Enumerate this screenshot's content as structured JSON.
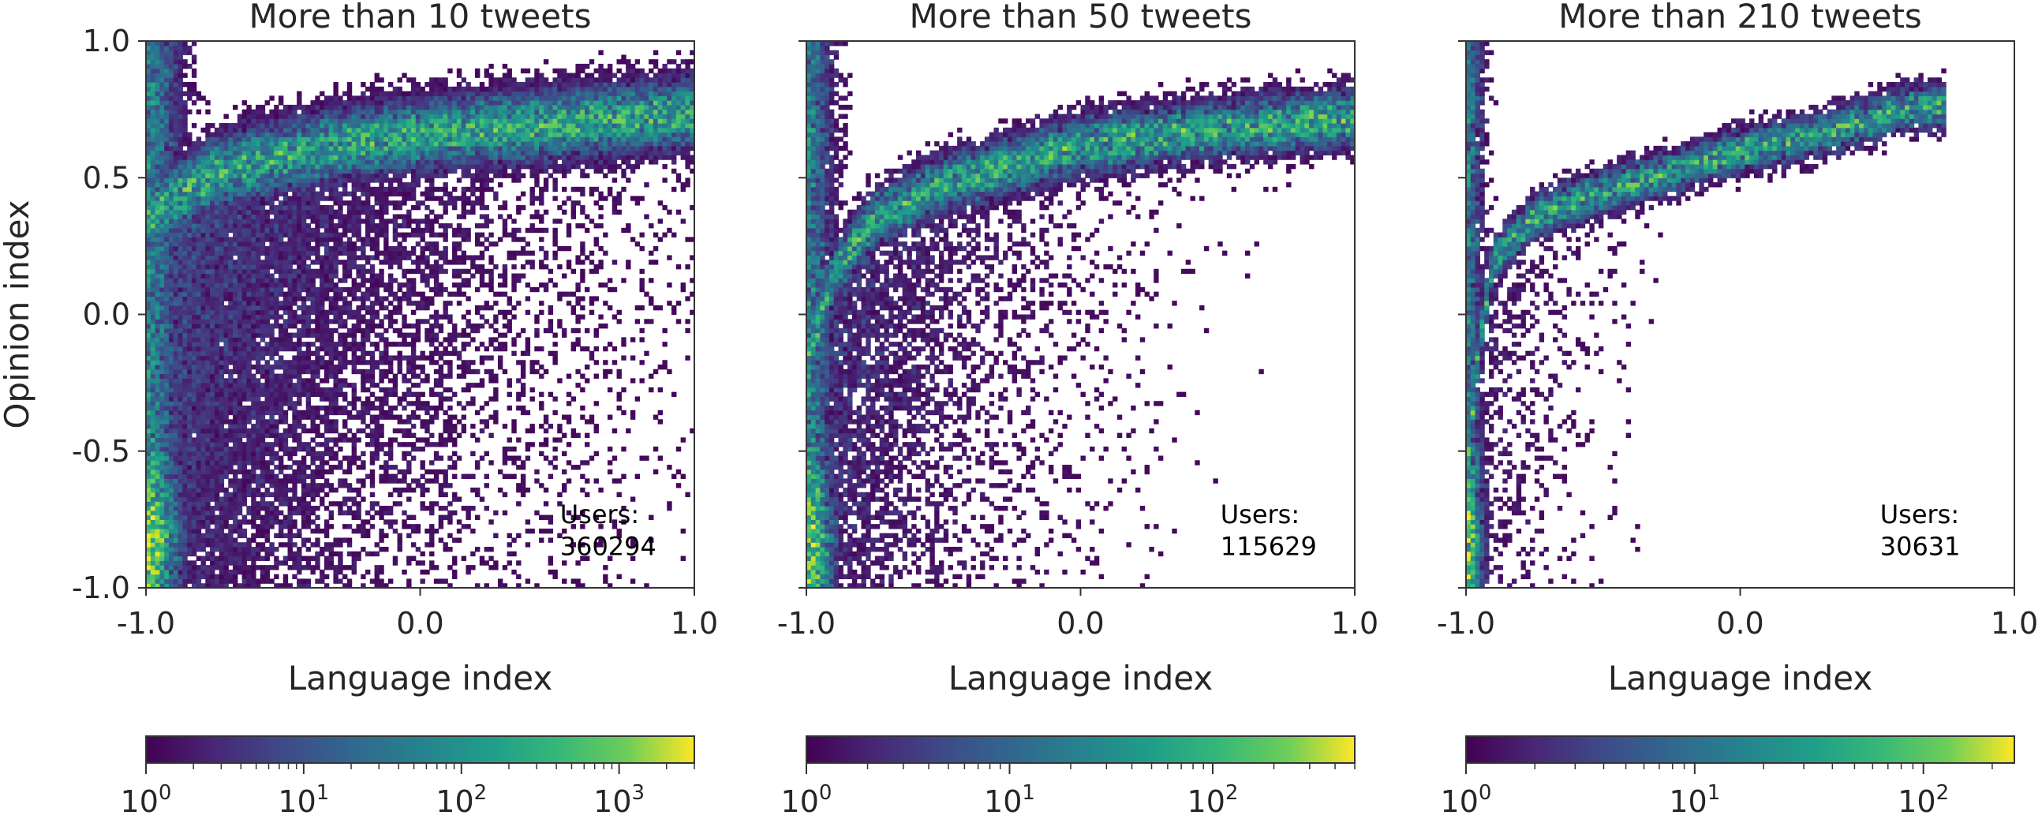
{
  "chart_data": [
    {
      "type": "heatmap",
      "title": "More than 10 tweets",
      "xlabel": "Language index",
      "ylabel": "Opinion index",
      "xlim": [
        -1.0,
        1.0
      ],
      "ylim": [
        -1.0,
        1.0
      ],
      "xticks": [
        "-1.0",
        "0.0",
        "1.0"
      ],
      "yticks": [
        "1.0",
        "0.5",
        "0.0",
        "-0.5",
        "-1.0"
      ],
      "annotation": [
        "Users:",
        "360294"
      ],
      "users": 360294,
      "colormap": "viridis",
      "color_scale": "log",
      "colorbar": {
        "min_exp": 0,
        "max_value": 3000,
        "tick_exps": [
          "0",
          "1",
          "2",
          "3"
        ]
      },
      "ridge": [
        [
          -1.0,
          0.35
        ],
        [
          -0.75,
          0.52
        ],
        [
          -0.5,
          0.58
        ],
        [
          -0.25,
          0.63
        ],
        [
          0.0,
          0.66
        ],
        [
          0.5,
          0.7
        ],
        [
          1.0,
          0.74
        ]
      ],
      "peak": [
        -1.0,
        -0.82
      ]
    },
    {
      "type": "heatmap",
      "title": "More than 50 tweets",
      "xlabel": "Language index",
      "ylabel": "",
      "xlim": [
        -1.0,
        1.0
      ],
      "ylim": [
        -1.0,
        1.0
      ],
      "xticks": [
        "-1.0",
        "0.0",
        "1.0"
      ],
      "yticks": [],
      "annotation": [
        "Users:",
        "115629"
      ],
      "users": 115629,
      "colormap": "viridis",
      "color_scale": "log",
      "colorbar": {
        "min_exp": 0,
        "max_value": 500,
        "tick_exps": [
          "0",
          "1",
          "2"
        ]
      },
      "ridge": [
        [
          -1.0,
          -0.2
        ],
        [
          -0.9,
          0.15
        ],
        [
          -0.75,
          0.35
        ],
        [
          -0.5,
          0.48
        ],
        [
          -0.25,
          0.55
        ],
        [
          0.0,
          0.62
        ],
        [
          0.5,
          0.68
        ],
        [
          1.0,
          0.72
        ]
      ],
      "peak": [
        -1.0,
        -0.82
      ]
    },
    {
      "type": "heatmap",
      "title": "More than 210 tweets",
      "xlabel": "Language index",
      "ylabel": "",
      "xlim": [
        -1.0,
        1.0
      ],
      "ylim": [
        -1.0,
        1.0
      ],
      "xticks": [
        "-1.0",
        "0.0",
        "1.0"
      ],
      "yticks": [],
      "annotation": [
        "Users:",
        "30631"
      ],
      "users": 30631,
      "colormap": "viridis",
      "color_scale": "log",
      "colorbar": {
        "min_exp": 0,
        "max_value": 250,
        "tick_exps": [
          "0",
          "1",
          "2"
        ]
      },
      "ridge": [
        [
          -1.0,
          -0.6
        ],
        [
          -0.95,
          -0.1
        ],
        [
          -0.9,
          0.2
        ],
        [
          -0.75,
          0.36
        ],
        [
          -0.5,
          0.45
        ],
        [
          -0.25,
          0.52
        ],
        [
          0.0,
          0.6
        ],
        [
          0.25,
          0.65
        ],
        [
          0.5,
          0.72
        ],
        [
          0.6,
          0.76
        ]
      ],
      "peak": [
        -1.0,
        -0.82
      ]
    }
  ]
}
